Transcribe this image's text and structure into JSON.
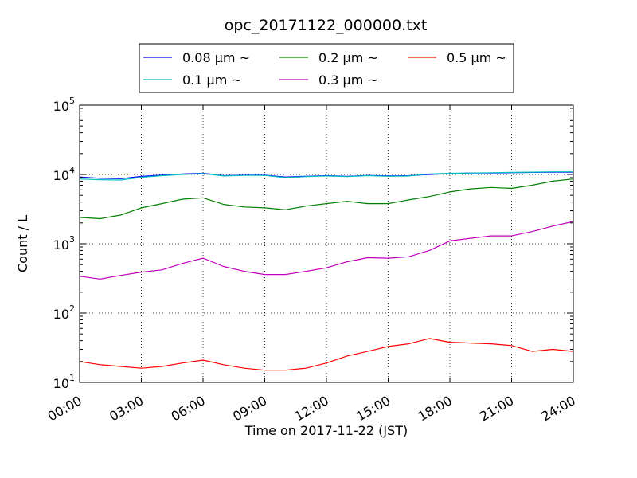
{
  "chart_data": {
    "type": "line",
    "title": "opc_20171122_000000.txt",
    "xlabel": "Time on 2017-11-22 (JST)",
    "ylabel": "Count / L",
    "xlim": [
      "00:00",
      "24:00"
    ],
    "ylim": [
      10,
      100000
    ],
    "yscale": "log",
    "grid": true,
    "legend_position": "top-center",
    "x_ticks": [
      "00:00",
      "03:00",
      "06:00",
      "09:00",
      "12:00",
      "15:00",
      "18:00",
      "21:00",
      "24:00"
    ],
    "y_ticks": [
      {
        "base": "10",
        "exp": "1",
        "value": 10
      },
      {
        "base": "10",
        "exp": "2",
        "value": 100
      },
      {
        "base": "10",
        "exp": "3",
        "value": 1000
      },
      {
        "base": "10",
        "exp": "4",
        "value": 10000
      },
      {
        "base": "10",
        "exp": "5",
        "value": 100000
      }
    ],
    "x": [
      "00:00",
      "01:00",
      "02:00",
      "03:00",
      "04:00",
      "05:00",
      "06:00",
      "07:00",
      "08:00",
      "09:00",
      "10:00",
      "11:00",
      "12:00",
      "13:00",
      "14:00",
      "15:00",
      "16:00",
      "17:00",
      "18:00",
      "19:00",
      "20:00",
      "21:00",
      "22:00",
      "23:00",
      "24:00"
    ],
    "series": [
      {
        "name": "0.08 μm ~",
        "color": "#0000ff",
        "values": [
          9200,
          8800,
          8700,
          9400,
          9800,
          10200,
          10400,
          9600,
          9800,
          9800,
          9200,
          9400,
          9600,
          9400,
          9700,
          9500,
          9600,
          10000,
          10300,
          10500,
          10500,
          10600,
          10700,
          10800,
          10800
        ]
      },
      {
        "name": "0.1 μm ~",
        "color": "#00bfbf",
        "values": [
          8600,
          8400,
          8300,
          9100,
          9600,
          10000,
          10300,
          9500,
          9700,
          9700,
          9000,
          9300,
          9500,
          9300,
          9600,
          9400,
          9500,
          10200,
          10400,
          10500,
          10600,
          10700,
          10800,
          10900,
          10900
        ]
      },
      {
        "name": "0.2 μm ~",
        "color": "#008000",
        "values": [
          2400,
          2300,
          2600,
          3300,
          3800,
          4400,
          4600,
          3700,
          3400,
          3300,
          3100,
          3500,
          3800,
          4100,
          3800,
          3800,
          4300,
          4800,
          5600,
          6200,
          6500,
          6300,
          7000,
          8000,
          8600
        ]
      },
      {
        "name": "0.3 μm ~",
        "color": "#bf00bf",
        "values": [
          340,
          310,
          350,
          390,
          420,
          520,
          620,
          470,
          400,
          360,
          360,
          400,
          450,
          550,
          630,
          620,
          650,
          800,
          1100,
          1200,
          1300,
          1300,
          1500,
          1800,
          2100
        ]
      },
      {
        "name": "0.5 μm ~",
        "color": "#ff0000",
        "values": [
          20,
          18,
          17,
          16,
          17,
          19,
          21,
          18,
          16,
          15,
          15,
          16,
          19,
          24,
          28,
          33,
          36,
          43,
          38,
          37,
          36,
          34,
          28,
          30,
          28
        ]
      }
    ]
  }
}
